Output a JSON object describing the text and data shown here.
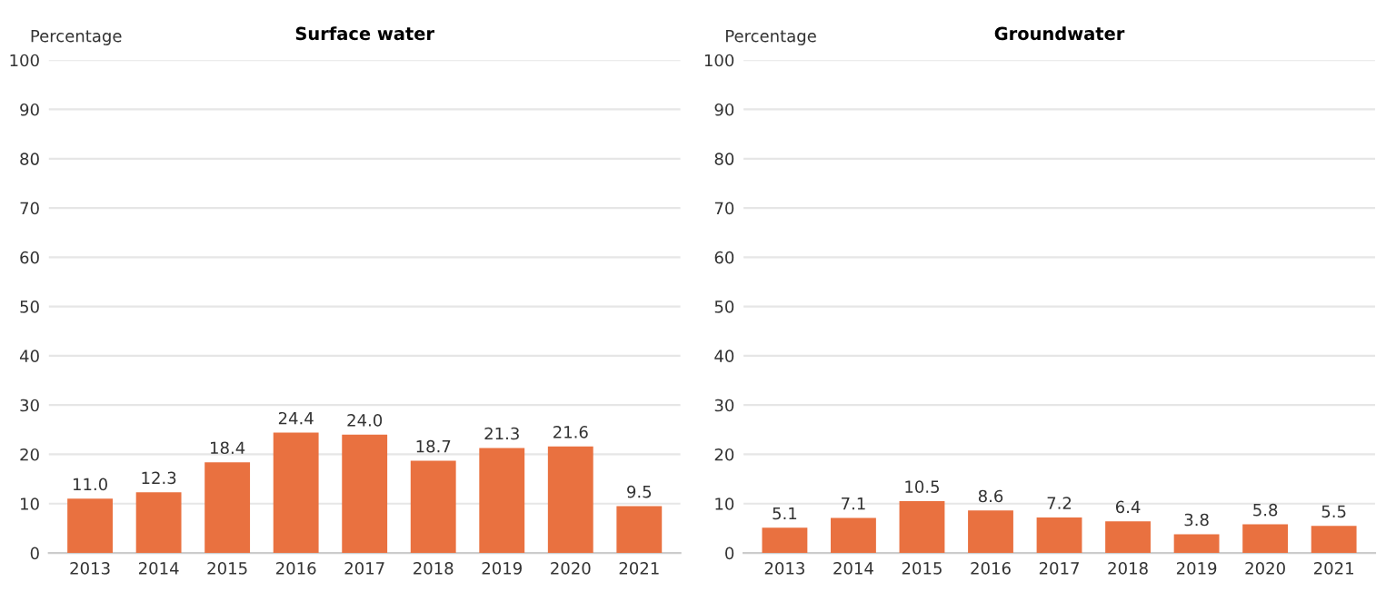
{
  "chart_data": [
    {
      "type": "bar",
      "title": "Surface water",
      "ylabel": "Percentage",
      "categories": [
        "2013",
        "2014",
        "2015",
        "2016",
        "2017",
        "2018",
        "2019",
        "2020",
        "2021"
      ],
      "values": [
        11.0,
        12.3,
        18.4,
        24.4,
        24.0,
        18.7,
        21.3,
        21.6,
        9.5
      ],
      "value_labels": [
        "11.0",
        "12.3",
        "18.4",
        "24.4",
        "24.0",
        "18.7",
        "21.3",
        "21.6",
        "9.5"
      ],
      "color": "#e97140",
      "ylim": [
        0,
        100
      ],
      "yticks": [
        0,
        10,
        20,
        30,
        40,
        50,
        60,
        70,
        80,
        90,
        100
      ],
      "grid": "y",
      "legend": false
    },
    {
      "type": "bar",
      "title": "Groundwater",
      "ylabel": "Percentage",
      "categories": [
        "2013",
        "2014",
        "2015",
        "2016",
        "2017",
        "2018",
        "2019",
        "2020",
        "2021"
      ],
      "values": [
        5.1,
        7.1,
        10.5,
        8.6,
        7.2,
        6.4,
        3.8,
        5.8,
        5.5
      ],
      "value_labels": [
        "5.1",
        "7.1",
        "10.5",
        "8.6",
        "7.2",
        "6.4",
        "3.8",
        "5.8",
        "5.5"
      ],
      "color": "#e97140",
      "ylim": [
        0,
        100
      ],
      "yticks": [
        0,
        10,
        20,
        30,
        40,
        50,
        60,
        70,
        80,
        90,
        100
      ],
      "grid": "y",
      "legend": false
    }
  ]
}
